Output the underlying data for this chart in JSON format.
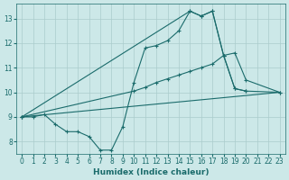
{
  "xlabel": "Humidex (Indice chaleur)",
  "xlim": [
    -0.5,
    23.5
  ],
  "ylim": [
    7.5,
    13.6
  ],
  "yticks": [
    8,
    9,
    10,
    11,
    12,
    13
  ],
  "xticks": [
    0,
    1,
    2,
    3,
    4,
    5,
    6,
    7,
    8,
    9,
    10,
    11,
    12,
    13,
    14,
    15,
    16,
    17,
    18,
    19,
    20,
    21,
    22,
    23
  ],
  "bg_color": "#cce8e8",
  "grid_color": "#aacccc",
  "line_color": "#1a6b6b",
  "line1_x": [
    0,
    1,
    2,
    3,
    4,
    5,
    6,
    7,
    8,
    9,
    10,
    11,
    12,
    13,
    14,
    15,
    16,
    17,
    18,
    19,
    20
  ],
  "line1_y": [
    9.0,
    9.0,
    9.1,
    8.7,
    8.4,
    8.4,
    8.2,
    7.65,
    7.65,
    8.6,
    10.4,
    11.8,
    11.9,
    12.1,
    12.5,
    13.3,
    13.1,
    13.3,
    11.5,
    10.15,
    10.05
  ],
  "line2_x": [
    0,
    23
  ],
  "line2_y": [
    9.0,
    10.0
  ],
  "line3_x": [
    0,
    10,
    11,
    12,
    13,
    14,
    15,
    16,
    17,
    18,
    19,
    20,
    23
  ],
  "line3_y": [
    9.0,
    10.05,
    10.2,
    10.4,
    10.55,
    10.7,
    10.85,
    11.0,
    11.15,
    11.5,
    11.6,
    10.5,
    10.0
  ],
  "line4_x": [
    0,
    15,
    16,
    17,
    18,
    19,
    20,
    23
  ],
  "line4_y": [
    9.0,
    13.3,
    13.1,
    13.3,
    11.5,
    10.15,
    10.05,
    10.0
  ]
}
